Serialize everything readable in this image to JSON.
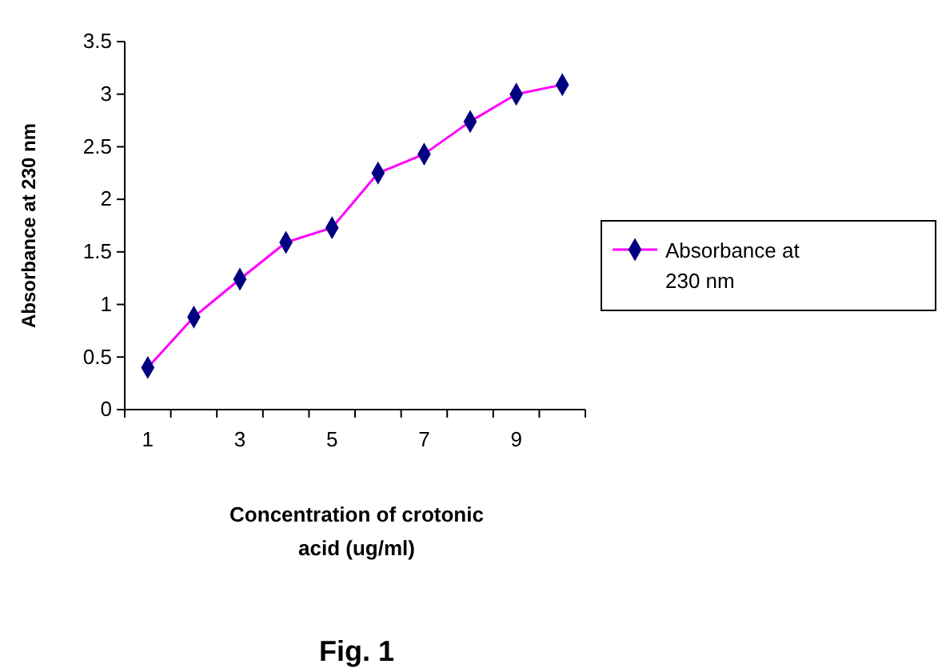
{
  "chart_data": {
    "type": "line",
    "title": "Fig. 1",
    "xlabel": "Concentration of crotonic acid (ug/ml)",
    "ylabel": "Absorbance at 230 nm",
    "categories": [
      "1",
      null,
      "3",
      null,
      "5",
      null,
      "7",
      null,
      "9",
      null
    ],
    "series": [
      {
        "name": "Absorbance at 230 nm",
        "color": "#ff00ff",
        "values": [
          0.4,
          0.88,
          1.24,
          1.59,
          1.73,
          2.25,
          2.43,
          2.74,
          3.0,
          3.09
        ]
      }
    ],
    "ylim": [
      0,
      3.5
    ],
    "yticks": [
      0,
      0.5,
      1,
      1.5,
      2,
      2.5,
      3,
      3.5
    ],
    "marker": "diamond",
    "legend": "right",
    "grid": false
  }
}
